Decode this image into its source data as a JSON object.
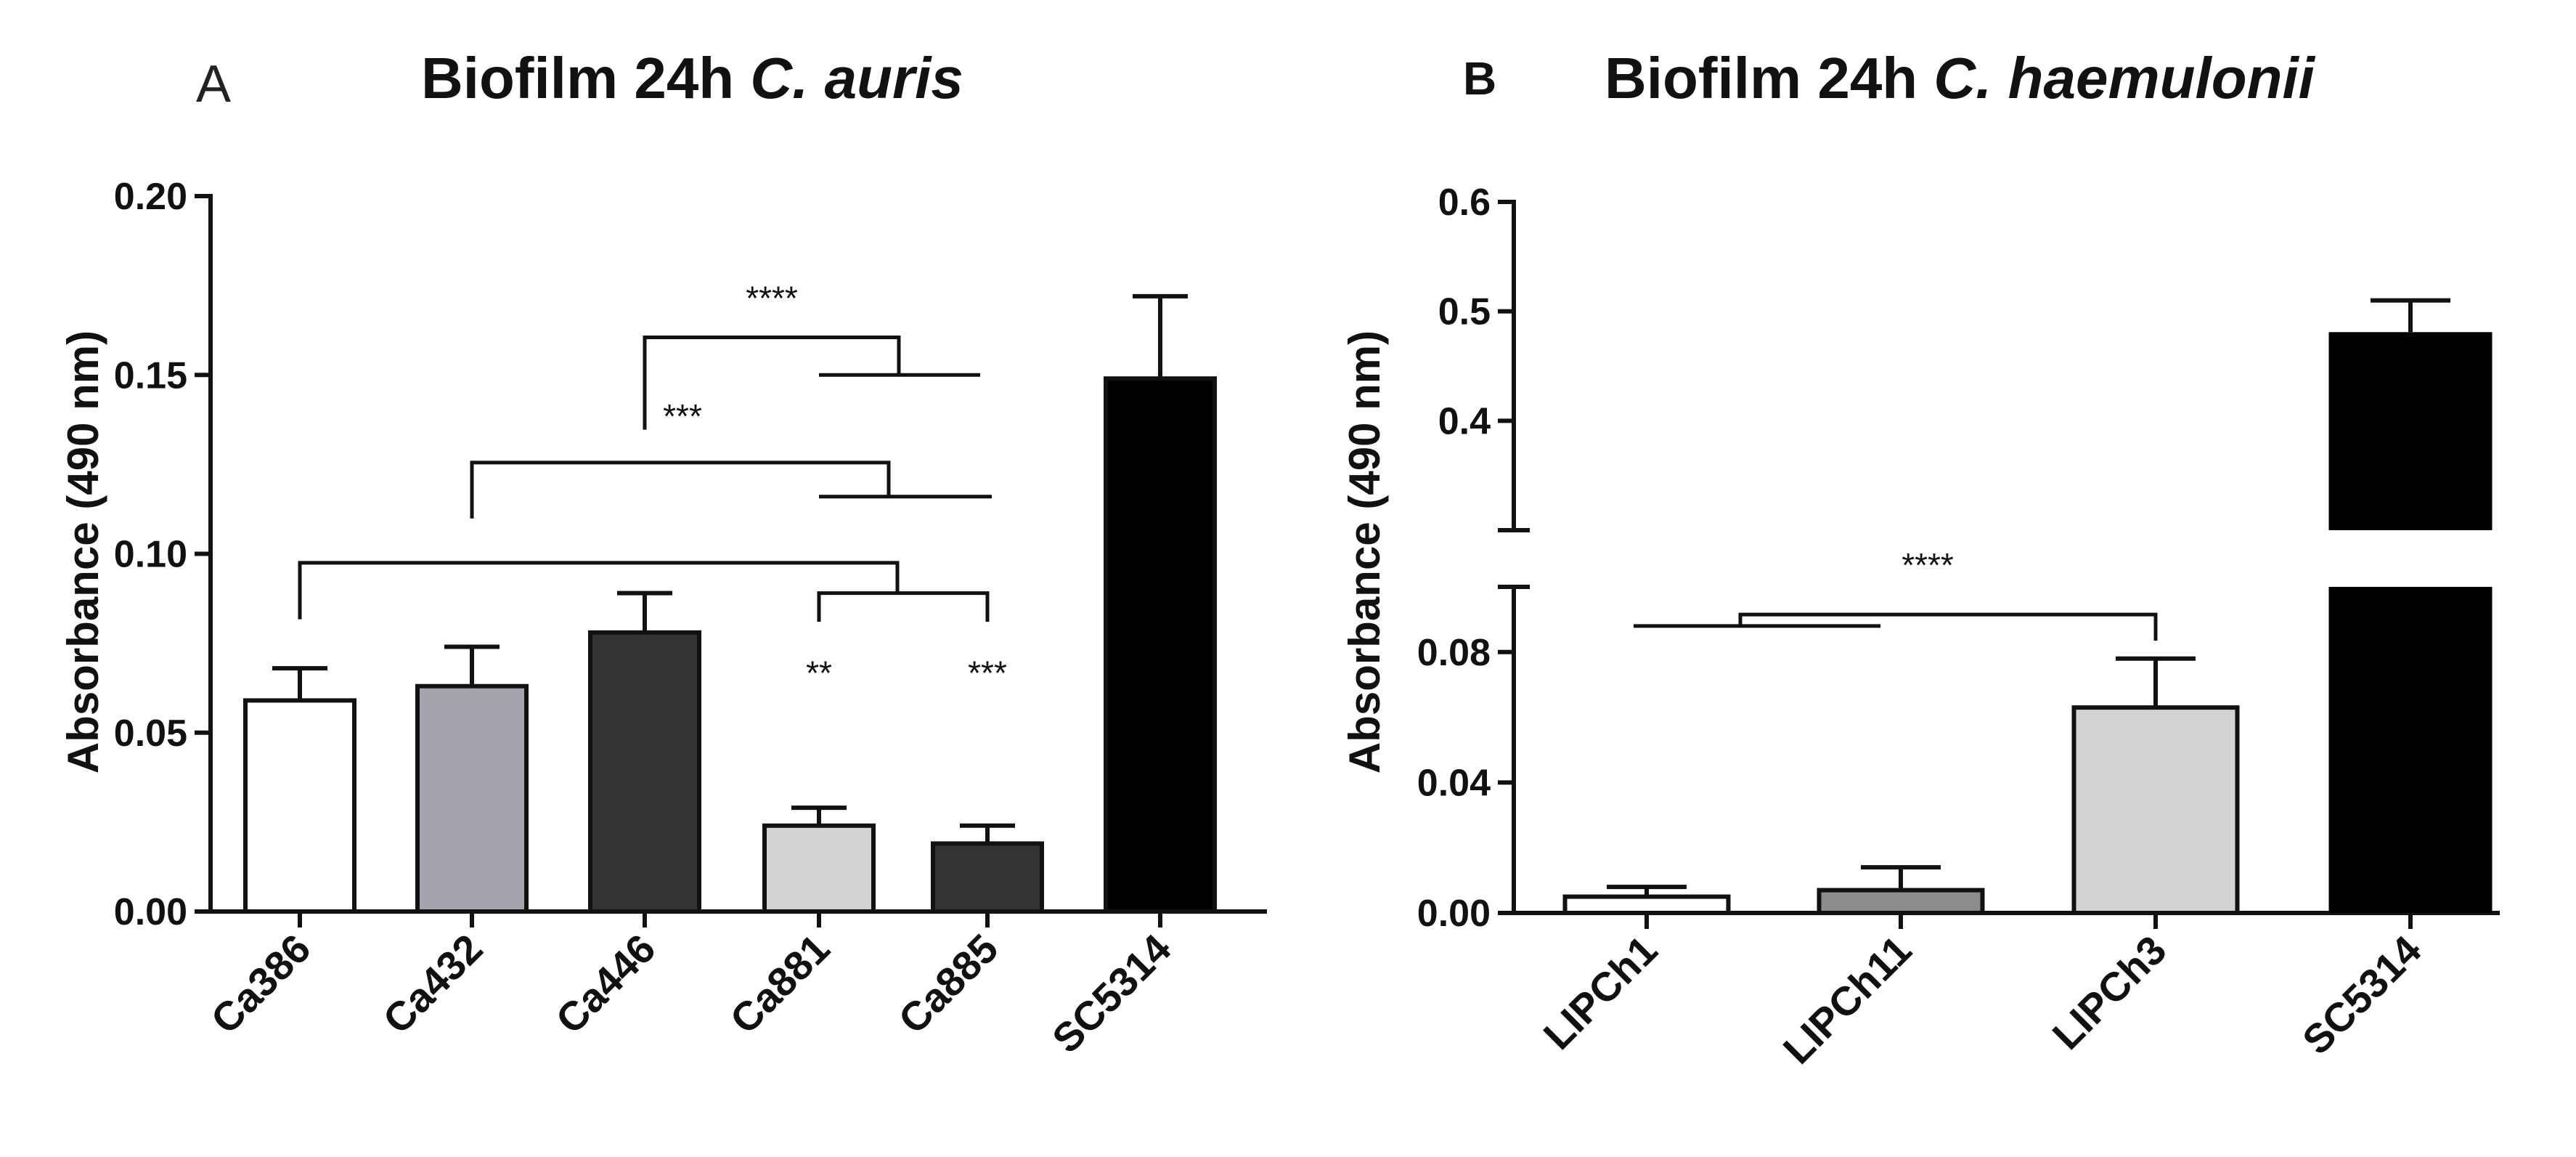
{
  "colors": {
    "white": "#ffffff",
    "lightgray": "#d3d3d3",
    "gray": "#a4a4ac",
    "midgray": "#8c8c8c",
    "darkgray": "#333333",
    "black": "#000000"
  },
  "chart_data": [
    {
      "panel": "A",
      "type": "bar",
      "title_main": "Biofilm 24h ",
      "title_species": "C. auris",
      "ylabel": "Absorbance (490 nm)",
      "ylim": [
        0,
        0.2
      ],
      "yticks": [
        "0.00",
        "0.05",
        "0.10",
        "0.15",
        "0.20"
      ],
      "categories": [
        "Ca386",
        "Ca432",
        "Ca446",
        "Ca881",
        "Ca885",
        "SC5314"
      ],
      "values": [
        0.059,
        0.063,
        0.078,
        0.024,
        0.019,
        0.149
      ],
      "errors": [
        0.009,
        0.011,
        0.011,
        0.005,
        0.005,
        0.023
      ],
      "fills": [
        "white",
        "gray",
        "darkgray",
        "lightgray",
        "darkgray",
        "black"
      ],
      "significance": [
        {
          "label": "****",
          "left": "Ca446",
          "right": [
            "Ca881",
            "Ca885"
          ]
        },
        {
          "label": "***",
          "left": "Ca432",
          "right": [
            "Ca881",
            "Ca885"
          ]
        },
        {
          "label": "",
          "left": "Ca386",
          "right": [
            "Ca881",
            "Ca885"
          ]
        },
        {
          "label": "**",
          "over": "Ca881"
        },
        {
          "label": "***",
          "over": "Ca885"
        }
      ]
    },
    {
      "panel": "B",
      "type": "bar",
      "title_main": "Biofilm 24h ",
      "title_species": "C. haemulonii",
      "ylabel": "Absorbance (490 nm)",
      "broken_axis": true,
      "ylim_lower": [
        0,
        0.1
      ],
      "ylim_upper": [
        0.3,
        0.6
      ],
      "yticks_lower": [
        "0.00",
        "0.04",
        "0.08"
      ],
      "yticks_upper": [
        "0.4",
        "0.5",
        "0.6"
      ],
      "categories": [
        "LIPCh1",
        "LIPCh11",
        "LIPCh3",
        "SC5314"
      ],
      "values": [
        0.005,
        0.007,
        0.063,
        0.481
      ],
      "errors": [
        0.003,
        0.007,
        0.015,
        0.029
      ],
      "fills": [
        "white",
        "midgray",
        "lightgray",
        "black"
      ],
      "significance": [
        {
          "label": "****",
          "left": [
            "LIPCh1",
            "LIPCh11"
          ],
          "right": "LIPCh3"
        }
      ]
    }
  ]
}
